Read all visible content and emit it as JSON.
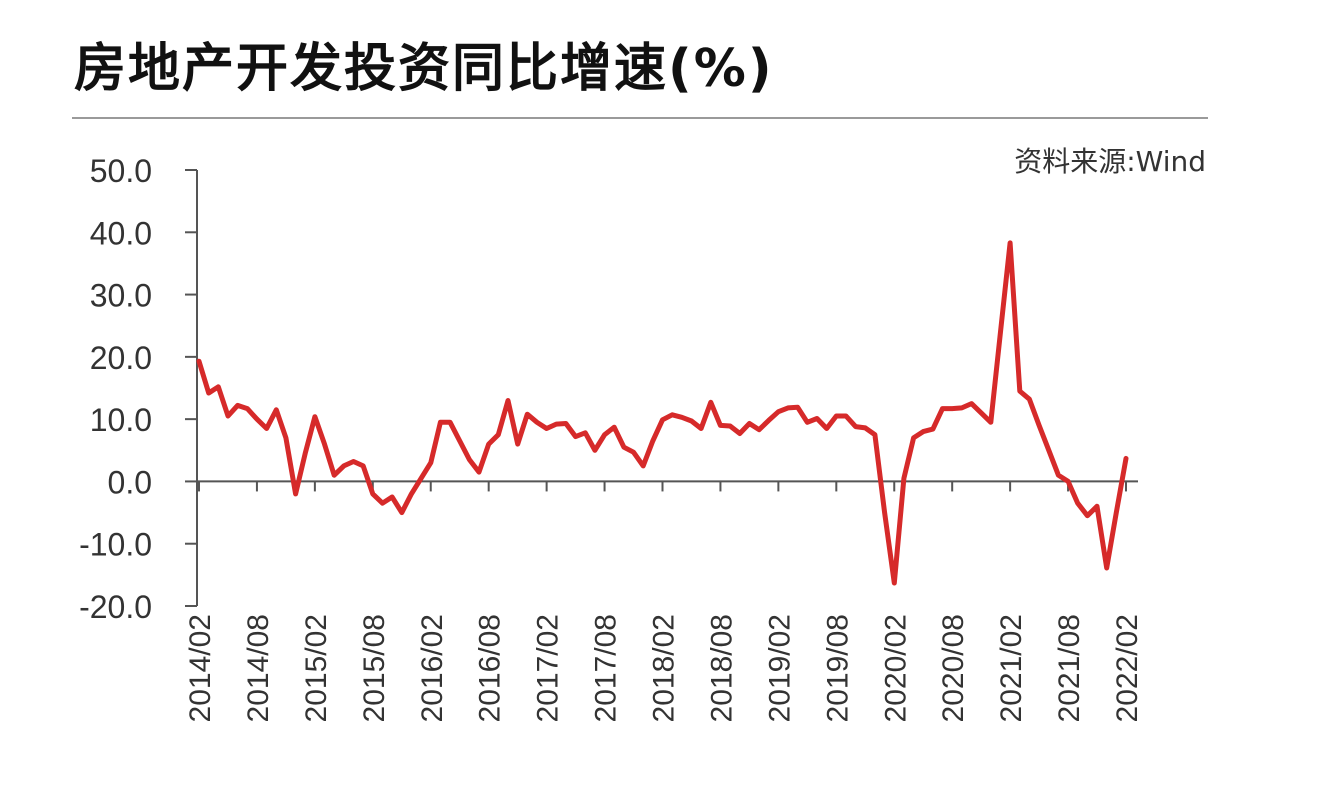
{
  "title": "房地产开发投资同比增速(%)",
  "source": "资料来源:Wind",
  "colors": {
    "line": "#d62a2a",
    "axis": "#555555",
    "text": "#333333"
  },
  "chart_data": {
    "type": "line",
    "title": "房地产开发投资同比增速(%)",
    "xlabel": "",
    "ylabel": "",
    "ylim": [
      -20,
      50
    ],
    "y_ticks": [
      50,
      40,
      30,
      20,
      10,
      0,
      -10,
      -20
    ],
    "y_tick_labels": [
      "50.0",
      "40.0",
      "30.0",
      "20.0",
      "10.0",
      "0.0",
      "-10.0",
      "-20.0"
    ],
    "x_tick_labels": [
      "2014/02",
      "2014/08",
      "2015/02",
      "2015/08",
      "2016/02",
      "2016/08",
      "2017/02",
      "2017/08",
      "2018/02",
      "2018/08",
      "2019/02",
      "2019/08",
      "2020/02",
      "2020/08",
      "2021/02",
      "2021/08",
      "2022/02"
    ],
    "grid": false,
    "legend": "none",
    "series": [
      {
        "color": "#d62a2a",
        "x": [
          "2014/02",
          "2014/03",
          "2014/04",
          "2014/05",
          "2014/06",
          "2014/07",
          "2014/08",
          "2014/09",
          "2014/10",
          "2014/11",
          "2014/12",
          "2015/01",
          "2015/02",
          "2015/03",
          "2015/04",
          "2015/05",
          "2015/06",
          "2015/07",
          "2015/08",
          "2015/09",
          "2015/10",
          "2015/11",
          "2015/12",
          "2016/01",
          "2016/02",
          "2016/03",
          "2016/04",
          "2016/05",
          "2016/06",
          "2016/07",
          "2016/08",
          "2016/09",
          "2016/10",
          "2016/11",
          "2016/12",
          "2017/01",
          "2017/02",
          "2017/03",
          "2017/04",
          "2017/05",
          "2017/06",
          "2017/07",
          "2017/08",
          "2017/09",
          "2017/10",
          "2017/11",
          "2017/12",
          "2018/01",
          "2018/02",
          "2018/03",
          "2018/04",
          "2018/05",
          "2018/06",
          "2018/07",
          "2018/08",
          "2018/09",
          "2018/10",
          "2018/11",
          "2018/12",
          "2019/01",
          "2019/02",
          "2019/03",
          "2019/04",
          "2019/05",
          "2019/06",
          "2019/07",
          "2019/08",
          "2019/09",
          "2019/10",
          "2019/11",
          "2019/12",
          "2020/01",
          "2020/02",
          "2020/03",
          "2020/04",
          "2020/05",
          "2020/06",
          "2020/07",
          "2020/08",
          "2020/09",
          "2020/10",
          "2020/11",
          "2020/12",
          "2021/01",
          "2021/02",
          "2021/03",
          "2021/04",
          "2021/05",
          "2021/06",
          "2021/07",
          "2021/08",
          "2021/09",
          "2021/10",
          "2021/11",
          "2021/12",
          "2022/01",
          "2022/02"
        ],
        "values": [
          19.3,
          14.2,
          15.2,
          10.5,
          12.2,
          11.7,
          10.0,
          8.5,
          11.5,
          7.0,
          -2.0,
          4.5,
          10.4,
          6.0,
          1.0,
          2.5,
          3.2,
          2.5,
          -2.0,
          -3.5,
          -2.5,
          -5.0,
          -2.0,
          0.5,
          3.0,
          9.5,
          9.5,
          6.5,
          3.5,
          1.5,
          6.0,
          7.5,
          13.0,
          6.0,
          10.8,
          9.5,
          8.5,
          9.2,
          9.3,
          7.2,
          7.8,
          5.0,
          7.5,
          8.7,
          5.5,
          4.7,
          2.5,
          6.5,
          9.9,
          10.7,
          10.3,
          9.7,
          8.5,
          12.7,
          9.0,
          8.9,
          7.7,
          9.3,
          8.3,
          9.8,
          11.2,
          11.8,
          11.9,
          9.5,
          10.1,
          8.5,
          10.5,
          10.5,
          8.8,
          8.6,
          7.5,
          -5.0,
          -16.3,
          0.5,
          7.0,
          8.0,
          8.4,
          11.7,
          11.7,
          11.8,
          12.5,
          11.0,
          9.5,
          24.0,
          38.3,
          14.5,
          13.2,
          9.0,
          5.0,
          1.0,
          0.0,
          -3.5,
          -5.5,
          -4.0,
          -13.9,
          -5.0,
          3.7
        ]
      }
    ]
  }
}
